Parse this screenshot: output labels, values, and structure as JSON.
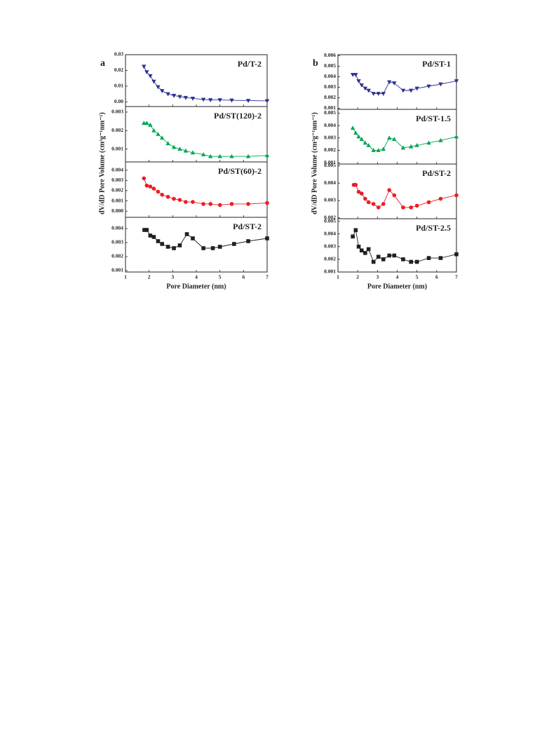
{
  "chart_data": [
    {
      "type": "line",
      "panel_label": "a",
      "title": "Pd/T-2",
      "ylabel": "dV/dD Pore Volume (cm³g⁻¹nm⁻¹)",
      "x": [
        1.78,
        1.9,
        2.05,
        2.2,
        2.38,
        2.55,
        2.8,
        3.05,
        3.3,
        3.55,
        3.85,
        4.3,
        4.6,
        5.0,
        5.5,
        6.2,
        7.0
      ],
      "series": [
        {
          "name": "Pd/T-2",
          "color": "#2e3192",
          "marker": "triangle-down",
          "values": [
            0.0225,
            0.019,
            0.0165,
            0.013,
            0.0095,
            0.007,
            0.005,
            0.004,
            0.0033,
            0.0027,
            0.0022,
            0.0015,
            0.0012,
            0.0012,
            0.001,
            0.0008,
            0.0006
          ]
        }
      ],
      "xlim": [
        1,
        7
      ],
      "xticks": [
        1,
        2,
        3,
        4,
        5,
        6,
        7
      ],
      "ylim": [
        -0.003,
        0.03
      ],
      "yticks": [
        {
          "value": 0,
          "label": "0.00"
        },
        0.01,
        0.02,
        0.03
      ]
    },
    {
      "type": "line",
      "title": "Pd/ST(120)-2",
      "x": [
        1.78,
        1.9,
        2.05,
        2.2,
        2.38,
        2.55,
        2.8,
        3.05,
        3.3,
        3.55,
        3.85,
        4.3,
        4.6,
        5.0,
        5.5,
        6.2,
        7.0
      ],
      "series": [
        {
          "name": "Pd/ST(120)-2",
          "color": "#00a650",
          "marker": "triangle-up",
          "values": [
            0.0024,
            0.0024,
            0.0023,
            0.002,
            0.0018,
            0.0016,
            0.0013,
            0.0011,
            0.001,
            0.0009,
            0.0008,
            0.0007,
            0.0006,
            0.0006,
            0.0006,
            0.0006,
            0.00065
          ]
        }
      ],
      "xlim": [
        1,
        7
      ],
      "xticks": [
        1,
        2,
        3,
        4,
        5,
        6,
        7
      ],
      "ylim": [
        0.0003,
        0.0033
      ],
      "yticks": [
        0.001,
        0.002,
        0.003
      ]
    },
    {
      "type": "line",
      "title": "Pd/ST(60)-2",
      "x": [
        1.78,
        1.9,
        2.05,
        2.2,
        2.38,
        2.55,
        2.8,
        3.05,
        3.3,
        3.55,
        3.85,
        4.3,
        4.6,
        5.0,
        5.5,
        6.2,
        7.0
      ],
      "series": [
        {
          "name": "Pd/ST(60)-2",
          "color": "#ed1c24",
          "marker": "circle",
          "values": [
            0.0032,
            0.0025,
            0.0024,
            0.0022,
            0.0019,
            0.0016,
            0.0014,
            0.0012,
            0.0011,
            0.0009,
            0.0009,
            0.0007,
            0.0007,
            0.0006,
            0.0007,
            0.0007,
            0.0008
          ]
        }
      ],
      "xlim": [
        1,
        7
      ],
      "xticks": [
        1,
        2,
        3,
        4,
        5,
        6,
        7
      ],
      "ylim": [
        -0.0006,
        0.0048
      ],
      "yticks": [
        {
          "value": 0,
          "label": "0.000"
        },
        0.001,
        0.002,
        0.003,
        0.004
      ]
    },
    {
      "type": "line",
      "title": "Pd/ST-2",
      "xlabel": "Pore Diameter (nm)",
      "x": [
        1.8,
        1.9,
        2.05,
        2.2,
        2.38,
        2.55,
        2.8,
        3.05,
        3.3,
        3.6,
        3.85,
        4.3,
        4.7,
        5.0,
        5.6,
        6.2,
        7.0
      ],
      "series": [
        {
          "name": "Pd/ST-2",
          "color": "#231f20",
          "marker": "square",
          "values": [
            0.0039,
            0.0039,
            0.0035,
            0.0034,
            0.0031,
            0.0029,
            0.0027,
            0.0026,
            0.0028,
            0.0036,
            0.0033,
            0.0026,
            0.0026,
            0.0027,
            0.0029,
            0.0031,
            0.0033
          ]
        }
      ],
      "xlim": [
        1,
        7
      ],
      "xticks": [
        1,
        2,
        3,
        4,
        5,
        6,
        7
      ],
      "ylim": [
        0.0009,
        0.0048
      ],
      "yticks": [
        0.001,
        0.002,
        0.003,
        0.004
      ]
    },
    {
      "type": "line",
      "panel_label": "b",
      "title": "Pd/ST-1",
      "ylabel": "dV/dD Pore Volume (cm³g⁻¹nm⁻¹)",
      "x": [
        1.75,
        1.9,
        2.05,
        2.2,
        2.38,
        2.55,
        2.8,
        3.05,
        3.3,
        3.6,
        3.85,
        4.3,
        4.7,
        5.0,
        5.6,
        6.2,
        7.0
      ],
      "series": [
        {
          "name": "Pd/ST-1",
          "color": "#2e3192",
          "marker": "triangle-down",
          "values": [
            0.0042,
            0.0042,
            0.0036,
            0.0032,
            0.0029,
            0.0027,
            0.0024,
            0.0024,
            0.0024,
            0.0035,
            0.0034,
            0.0027,
            0.0027,
            0.0029,
            0.0031,
            0.0033,
            0.0036
          ]
        }
      ],
      "xlim": [
        1,
        7
      ],
      "xticks": [
        1,
        2,
        3,
        4,
        5,
        6,
        7
      ],
      "ylim": [
        0.0009,
        0.0061
      ],
      "yticks": [
        0.001,
        0.002,
        0.003,
        0.004,
        0.005,
        0.006
      ]
    },
    {
      "type": "line",
      "title": "Pd/ST-1.5",
      "x": [
        1.75,
        1.9,
        2.05,
        2.2,
        2.38,
        2.55,
        2.8,
        3.05,
        3.3,
        3.6,
        3.85,
        4.3,
        4.7,
        5.0,
        5.6,
        6.2,
        7.0
      ],
      "series": [
        {
          "name": "Pd/ST-1.5",
          "color": "#00a650",
          "marker": "triangle-up",
          "values": [
            0.0038,
            0.0034,
            0.0031,
            0.0029,
            0.0026,
            0.0024,
            0.002,
            0.002,
            0.0021,
            0.003,
            0.0029,
            0.0022,
            0.0023,
            0.0024,
            0.0026,
            0.0028,
            0.0031
          ]
        }
      ],
      "xlim": [
        1,
        7
      ],
      "xticks": [
        1,
        2,
        3,
        4,
        5,
        6,
        7
      ],
      "ylim": [
        0.0009,
        0.0053
      ],
      "yticks": [
        0.001,
        0.002,
        0.003,
        0.004,
        0.005
      ]
    },
    {
      "type": "line",
      "title": "Pd/ST-2",
      "x": [
        1.8,
        1.9,
        2.05,
        2.2,
        2.38,
        2.55,
        2.8,
        3.05,
        3.3,
        3.6,
        3.85,
        4.3,
        4.7,
        5.0,
        5.6,
        6.2,
        7.0
      ],
      "series": [
        {
          "name": "Pd/ST-2",
          "color": "#ed1c24",
          "marker": "circle",
          "values": [
            0.0039,
            0.0039,
            0.0035,
            0.0034,
            0.0031,
            0.0029,
            0.0028,
            0.0026,
            0.0028,
            0.0036,
            0.0033,
            0.0026,
            0.0026,
            0.0027,
            0.0029,
            0.0031,
            0.0033
          ]
        }
      ],
      "xlim": [
        1,
        7
      ],
      "xticks": [
        1,
        2,
        3,
        4,
        5,
        6,
        7
      ],
      "ylim": [
        0.00195,
        0.0051
      ],
      "yticks": [
        0.002,
        0.003,
        0.004,
        0.005
      ]
    },
    {
      "type": "line",
      "title": "Pd/ST-2.5",
      "xlabel": "Pore Diameter (nm)",
      "x": [
        1.75,
        1.9,
        2.05,
        2.2,
        2.38,
        2.55,
        2.8,
        3.05,
        3.3,
        3.6,
        3.85,
        4.3,
        4.7,
        5.0,
        5.6,
        6.2,
        7.0
      ],
      "series": [
        {
          "name": "Pd/ST-2.5",
          "color": "#231f20",
          "marker": "square",
          "values": [
            0.0038,
            0.0043,
            0.003,
            0.0027,
            0.0025,
            0.0028,
            0.0018,
            0.0022,
            0.002,
            0.0023,
            0.0023,
            0.002,
            0.0018,
            0.0018,
            0.0021,
            0.0021,
            0.0024
          ]
        }
      ],
      "xlim": [
        1,
        7
      ],
      "xticks": [
        1,
        2,
        3,
        4,
        5,
        6,
        7
      ],
      "ylim": [
        0.001,
        0.0052
      ],
      "yticks": [
        0.001,
        0.002,
        0.003,
        0.004,
        0.005
      ]
    }
  ]
}
